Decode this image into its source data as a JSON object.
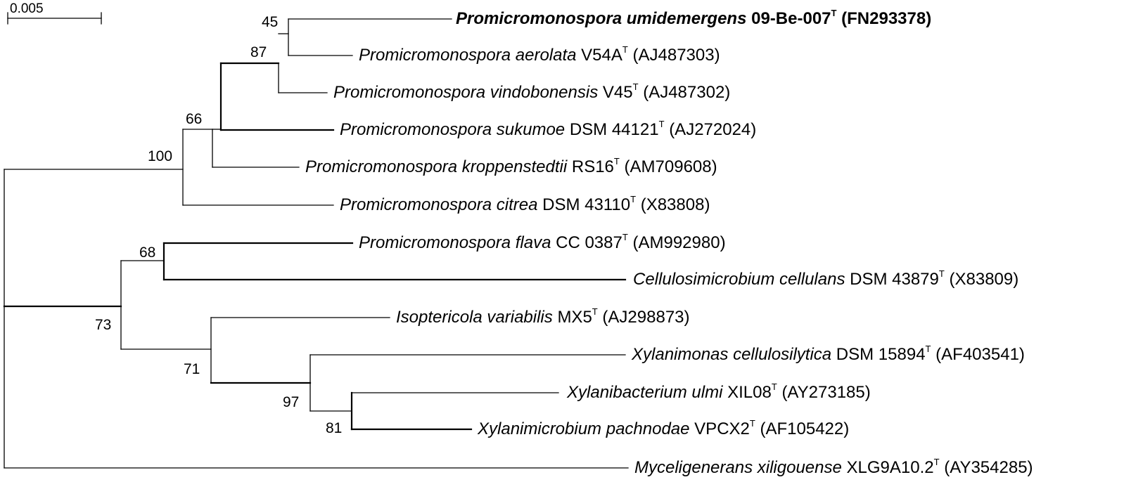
{
  "scale_bar": {
    "label": "0.005"
  },
  "leaves": [
    {
      "species": "Promicromonospora umidemergens",
      "strain": "09-Be-007",
      "type_mark": "T",
      "accession": "(FN293378)",
      "bold": true
    },
    {
      "species": "Promicromonospora aerolata",
      "strain": "V54A",
      "type_mark": "T",
      "accession": "(AJ487303)",
      "bold": false
    },
    {
      "species": "Promicromonospora vindobonensis",
      "strain": "V45",
      "type_mark": "T",
      "accession": "(AJ487302)",
      "bold": false
    },
    {
      "species": "Promicromonospora sukumoe",
      "strain": "DSM 44121",
      "type_mark": "T",
      "accession": "(AJ272024)",
      "bold": false
    },
    {
      "species": "Promicromonospora kroppenstedtii",
      "strain": "RS16",
      "type_mark": "T",
      "accession": "(AM709608)",
      "bold": false
    },
    {
      "species": "Promicromonospora citrea",
      "strain": "DSM 43110",
      "type_mark": "T",
      "accession": "(X83808)",
      "bold": false
    },
    {
      "species": "Promicromonospora flava",
      "strain": "CC 0387",
      "type_mark": "T",
      "accession": "(AM992980)",
      "bold": false
    },
    {
      "species": "Cellulosimicrobium cellulans",
      "strain": "DSM 43879",
      "type_mark": "T",
      "accession": "(X83809)",
      "bold": false
    },
    {
      "species": "Isoptericola variabilis",
      "strain": "MX5",
      "type_mark": "T",
      "accession": "(AJ298873)",
      "bold": false
    },
    {
      "species": "Xylanimonas cellulosilytica",
      "strain": "DSM 15894",
      "type_mark": "T",
      "accession": "(AF403541)",
      "bold": false
    },
    {
      "species": "Xylanibacterium ulmi",
      "strain": "XIL08",
      "type_mark": "T",
      "accession": "(AY273185)",
      "bold": false
    },
    {
      "species": "Xylanimicrobium pachnodae",
      "strain": "VPCX2",
      "type_mark": "T",
      "accession": "(AF105422)",
      "bold": false
    },
    {
      "species": "Myceligenerans xiligouense",
      "strain": "XLG9A10.2",
      "type_mark": "T",
      "accession": "(AY354285)",
      "bold": false
    }
  ],
  "bootstrap": {
    "n45": "45",
    "n87": "87",
    "n66": "66",
    "n100": "100",
    "n68": "68",
    "n73": "73",
    "n71": "71",
    "n97": "97",
    "n81": "81"
  }
}
